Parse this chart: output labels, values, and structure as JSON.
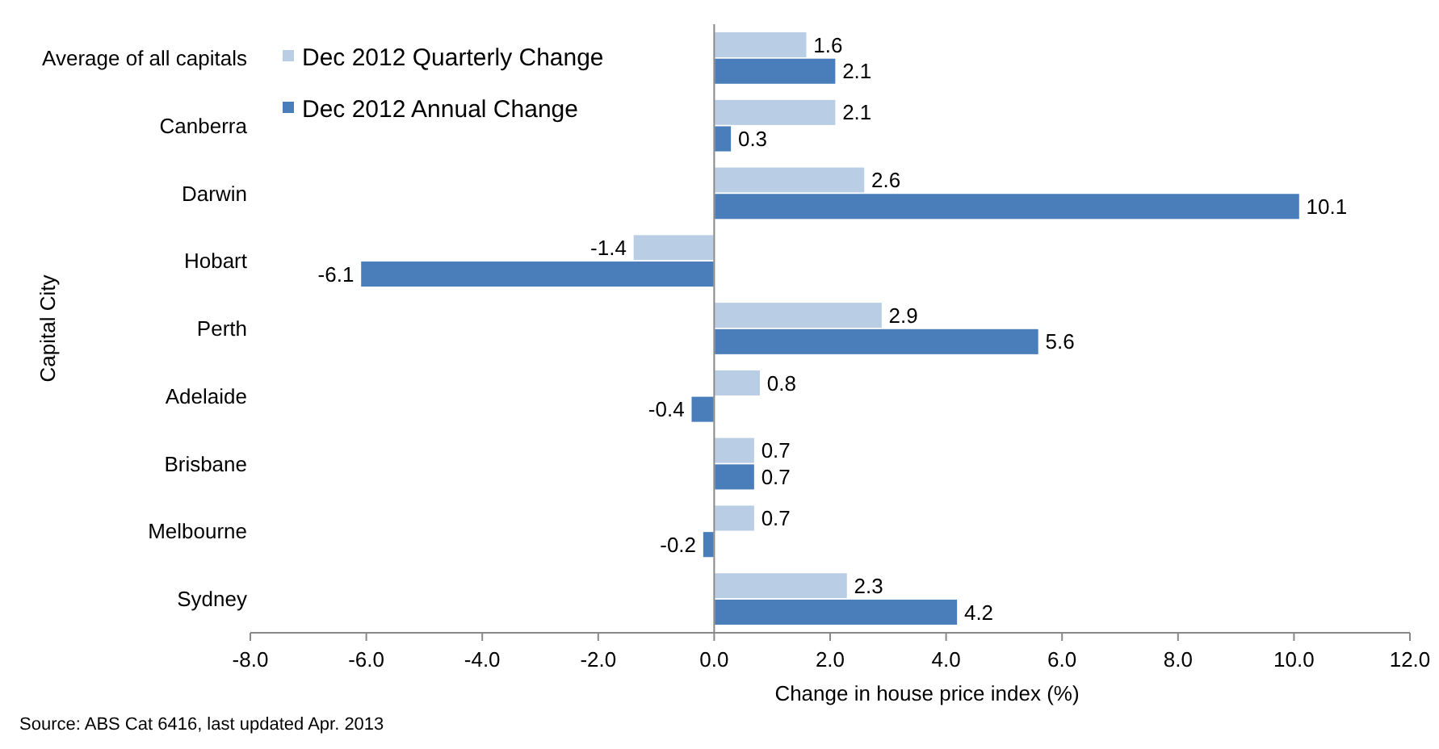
{
  "chart_data": {
    "type": "bar",
    "orientation": "horizontal",
    "ylabel": "Capital City",
    "xlabel": "Change in house price index (%)",
    "categories": [
      "Average of all capitals",
      "Canberra",
      "Darwin",
      "Hobart",
      "Perth",
      "Adelaide",
      "Brisbane",
      "Melbourne",
      "Sydney"
    ],
    "series": [
      {
        "name": "Dec 2012 Quarterly Change",
        "color": "#b9cde5",
        "values": [
          1.6,
          2.1,
          2.6,
          -1.4,
          2.9,
          0.8,
          0.7,
          0.7,
          2.3
        ]
      },
      {
        "name": "Dec 2012 Annual Change",
        "color": "#4a7ebb",
        "values": [
          2.1,
          0.3,
          10.1,
          -6.1,
          5.6,
          -0.4,
          0.7,
          -0.2,
          4.2
        ]
      }
    ],
    "xlim": [
      -8,
      12
    ],
    "xticks": [
      {
        "value": -8,
        "label": "-8.0"
      },
      {
        "value": -6,
        "label": "-6.0"
      },
      {
        "value": -4,
        "label": "-4.0"
      },
      {
        "value": -2,
        "label": "-2.0"
      },
      {
        "value": 0,
        "label": "0.0"
      },
      {
        "value": 2,
        "label": "2.0"
      },
      {
        "value": 4,
        "label": "4.0"
      },
      {
        "value": 6,
        "label": "6.0"
      },
      {
        "value": 8,
        "label": "8.0"
      },
      {
        "value": 10,
        "label": "10.0"
      },
      {
        "value": 12,
        "label": "12.0"
      }
    ],
    "data_labels": true,
    "legend": "top left",
    "annotations": [
      "Source: ABS Cat 6416, last updated Apr. 2013"
    ]
  }
}
